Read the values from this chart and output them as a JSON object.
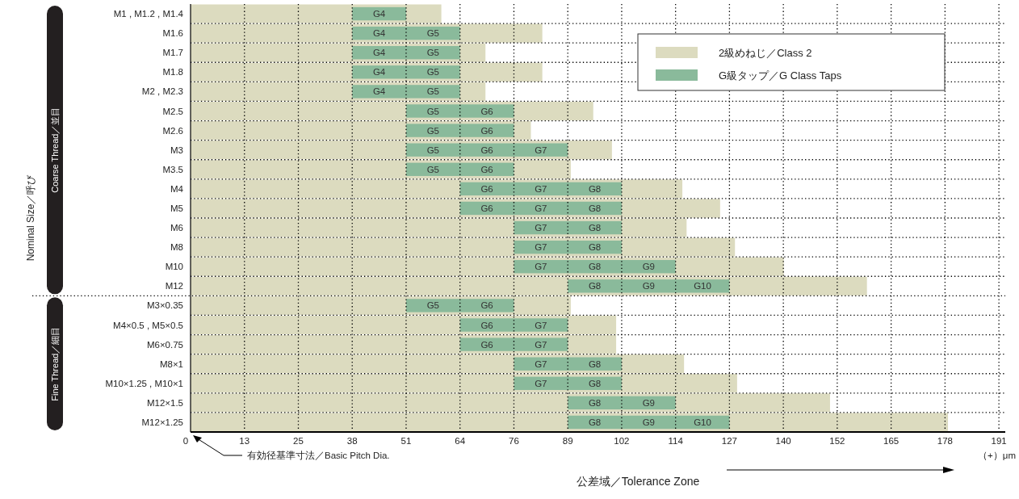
{
  "chart_data": {
    "type": "bar",
    "orientation": "horizontal",
    "categories": [
      "M1 , M1.2 , M1.4",
      "M1.6",
      "M1.7",
      "M1.8",
      "M2 , M2.3",
      "M2.5",
      "M2.6",
      "M3",
      "M3.5",
      "M4",
      "M5",
      "M6",
      "M8",
      "M10",
      "M12",
      "M3×0.35",
      "M4×0.5 , M5×0.5",
      "M6×0.75",
      "M8×1",
      "M10×1.25 , M10×1",
      "M12×1.5",
      "M12×1.25"
    ],
    "series": [
      {
        "name": "2級めねじ／Class 2",
        "color": "#dcdbbf",
        "values": [
          59.1,
          82.9,
          69.5,
          82.9,
          69.5,
          94.9,
          80.2,
          99.3,
          89.6,
          115.9,
          124.8,
          116.9,
          128.3,
          139.8,
          159.4,
          89.6,
          100.3,
          100.3,
          116.3,
          128.8,
          150.7,
          178.5
        ]
      },
      {
        "name": "G級タップ／G Class Taps",
        "color": "#8aba9b",
        "base": [
          38.1,
          38.1,
          38.1,
          38.1,
          38.1,
          50.8,
          50.8,
          50.8,
          50.8,
          63.5,
          63.5,
          76.2,
          76.2,
          76.2,
          88.9,
          50.8,
          63.5,
          63.5,
          76.2,
          76.2,
          88.9,
          88.9
        ],
        "values": [
          12.7,
          25.4,
          25.4,
          25.4,
          25.4,
          25.4,
          25.4,
          38.1,
          25.4,
          38.1,
          38.1,
          25.4,
          25.4,
          38.1,
          38.1,
          25.4,
          25.4,
          25.4,
          25.4,
          25.4,
          25.4,
          38.1
        ]
      }
    ],
    "xlim": [
      0,
      192
    ],
    "xticks": [
      {
        "value": 0,
        "label": "0"
      },
      {
        "value": 12.7,
        "label": "13"
      },
      {
        "value": 25.4,
        "label": "25"
      },
      {
        "value": 38.1,
        "label": "38"
      },
      {
        "value": 50.8,
        "label": "51"
      },
      {
        "value": 63.5,
        "label": "64"
      },
      {
        "value": 76.2,
        "label": "76"
      },
      {
        "value": 88.9,
        "label": "89"
      },
      {
        "value": 101.6,
        "label": "102"
      },
      {
        "value": 114.3,
        "label": "114"
      },
      {
        "value": 127,
        "label": "127"
      },
      {
        "value": 139.7,
        "label": "140"
      },
      {
        "value": 152.4,
        "label": "152"
      },
      {
        "value": 165.1,
        "label": "165"
      },
      {
        "value": 177.8,
        "label": "178"
      },
      {
        "value": 190.5,
        "label": "191"
      }
    ],
    "xlabel": "公差域／Tolerance Zone",
    "grid": true,
    "legend": "top right",
    "annotations": [
      "Coarse Thread／並目",
      "Fine Thread／細目",
      "有効径基準寸法／Basic Pitch Dia.",
      "（+）μm",
      "Nominal Size／呼び",
      {
        "text": "G4",
        "x": 44.45,
        "y": "M1 , M1.2 , M1.4"
      },
      {
        "text": "G4",
        "x": 44.45,
        "y": "M1.6"
      },
      {
        "text": "G5",
        "x": 57.15,
        "y": "M1.6"
      },
      {
        "text": "G4",
        "x": 44.45,
        "y": "M1.7"
      },
      {
        "text": "G5",
        "x": 57.15,
        "y": "M1.7"
      },
      {
        "text": "G4",
        "x": 44.45,
        "y": "M1.8"
      },
      {
        "text": "G5",
        "x": 57.15,
        "y": "M1.8"
      },
      {
        "text": "G4",
        "x": 44.45,
        "y": "M2 , M2.3"
      },
      {
        "text": "G5",
        "x": 57.15,
        "y": "M2 , M2.3"
      },
      {
        "text": "G5",
        "x": 57.15,
        "y": "M2.5"
      },
      {
        "text": "G6",
        "x": 69.85,
        "y": "M2.5"
      },
      {
        "text": "G5",
        "x": 57.15,
        "y": "M2.6"
      },
      {
        "text": "G6",
        "x": 69.85,
        "y": "M2.6"
      },
      {
        "text": "G5",
        "x": 57.15,
        "y": "M3"
      },
      {
        "text": "G6",
        "x": 69.85,
        "y": "M3"
      },
      {
        "text": "G7",
        "x": 82.55,
        "y": "M3"
      },
      {
        "text": "G5",
        "x": 57.15,
        "y": "M3.5"
      },
      {
        "text": "G6",
        "x": 69.85,
        "y": "M3.5"
      },
      {
        "text": "G6",
        "x": 69.85,
        "y": "M4"
      },
      {
        "text": "G7",
        "x": 82.55,
        "y": "M4"
      },
      {
        "text": "G8",
        "x": 95.25,
        "y": "M4"
      },
      {
        "text": "G6",
        "x": 69.85,
        "y": "M5"
      },
      {
        "text": "G7",
        "x": 82.55,
        "y": "M5"
      },
      {
        "text": "G8",
        "x": 95.25,
        "y": "M5"
      },
      {
        "text": "G7",
        "x": 82.55,
        "y": "M6"
      },
      {
        "text": "G8",
        "x": 95.25,
        "y": "M6"
      },
      {
        "text": "G7",
        "x": 82.55,
        "y": "M8"
      },
      {
        "text": "G8",
        "x": 95.25,
        "y": "M8"
      },
      {
        "text": "G7",
        "x": 82.55,
        "y": "M10"
      },
      {
        "text": "G8",
        "x": 95.25,
        "y": "M10"
      },
      {
        "text": "G9",
        "x": 107.95,
        "y": "M10"
      },
      {
        "text": "G8",
        "x": 95.25,
        "y": "M12"
      },
      {
        "text": "G9",
        "x": 107.95,
        "y": "M12"
      },
      {
        "text": "G10",
        "x": 120.65,
        "y": "M12"
      },
      {
        "text": "G5",
        "x": 57.15,
        "y": "M3×0.35"
      },
      {
        "text": "G6",
        "x": 69.85,
        "y": "M3×0.35"
      },
      {
        "text": "G6",
        "x": 69.85,
        "y": "M4×0.5 , M5×0.5"
      },
      {
        "text": "G7",
        "x": 82.55,
        "y": "M4×0.5 , M5×0.5"
      },
      {
        "text": "G6",
        "x": 69.85,
        "y": "M6×0.75"
      },
      {
        "text": "G7",
        "x": 82.55,
        "y": "M6×0.75"
      },
      {
        "text": "G7",
        "x": 82.55,
        "y": "M8×1"
      },
      {
        "text": "G8",
        "x": 95.25,
        "y": "M8×1"
      },
      {
        "text": "G7",
        "x": 82.55,
        "y": "M10×1.25 , M10×1"
      },
      {
        "text": "G8",
        "x": 95.25,
        "y": "M10×1.25 , M10×1"
      },
      {
        "text": "G8",
        "x": 95.25,
        "y": "M12×1.5"
      },
      {
        "text": "G9",
        "x": 107.95,
        "y": "M12×1.5"
      },
      {
        "text": "G8",
        "x": 95.25,
        "y": "M12×1.25"
      },
      {
        "text": "G9",
        "x": 107.95,
        "y": "M12×1.25"
      },
      {
        "text": "G10",
        "x": 120.65,
        "y": "M12×1.25"
      }
    ]
  }
}
